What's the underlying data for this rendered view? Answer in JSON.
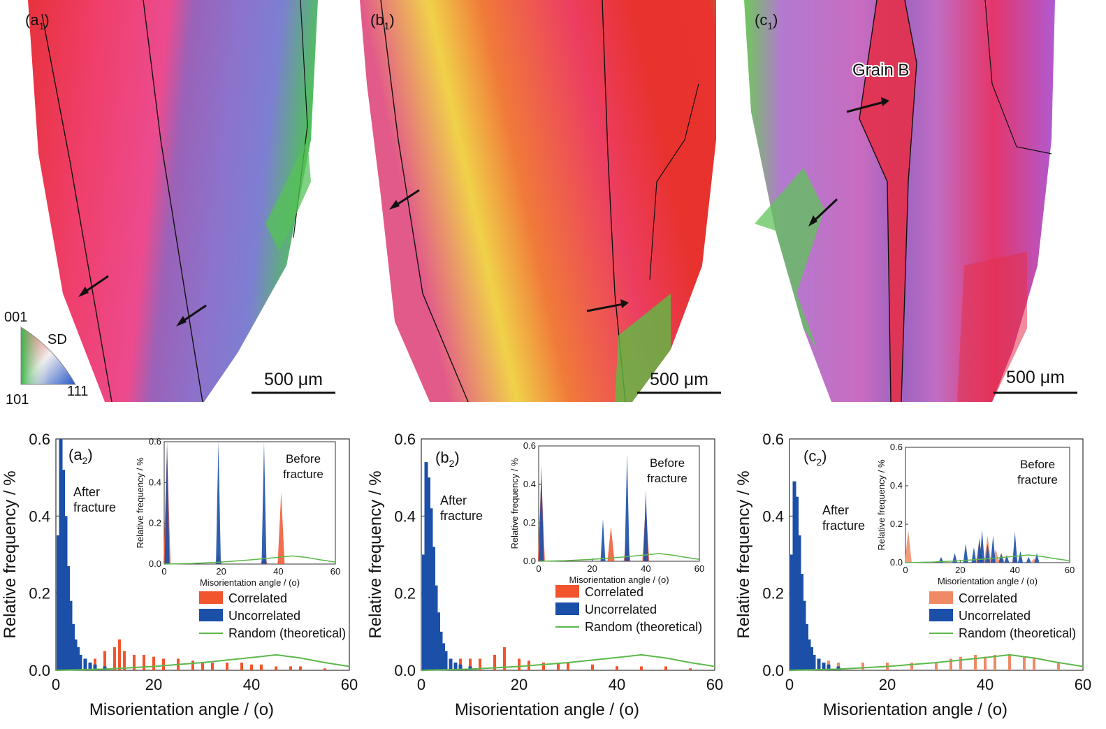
{
  "maps": [
    {
      "label_main": "(a",
      "label_sub": "1",
      "label_end": ")",
      "scale_text": "500 μm",
      "arrows": 2
    },
    {
      "label_main": "(b",
      "label_sub": "1",
      "label_end": ")",
      "scale_text": "500 μm",
      "arrows": 2
    },
    {
      "label_main": "(c",
      "label_sub": "1",
      "label_end": ")",
      "scale_text": "500 μm",
      "grain_label": "Grain  B",
      "arrows": 2
    }
  ],
  "ipf_key": {
    "top": "001",
    "left": "101",
    "right": "111",
    "side": "SD",
    "colors": {
      "001": "#e8282e",
      "101": "#39b54a",
      "111": "#2458c8"
    }
  },
  "colors": {
    "correlated": "#f2542d",
    "correlated_light": "#f08a66",
    "uncorrelated": "#1b4fa8",
    "random": "#5cb84a"
  },
  "chart_data": [
    {
      "type": "bar",
      "panel_main": "(a",
      "panel_sub": "2",
      "panel_end": ")",
      "xlabel": "Misorientation angle / (o)",
      "ylabel": "Relative frequency / %",
      "xlim": [
        0,
        60
      ],
      "ylim": [
        0,
        0.6
      ],
      "xticks": [
        0,
        20,
        40,
        60
      ],
      "yticks": [
        0.0,
        0.2,
        0.4,
        0.6
      ],
      "tick_labels_x": [
        "0",
        "20",
        "40",
        "60"
      ],
      "tick_labels_y": [
        "0.0",
        "0.2",
        "0.4",
        "0.6"
      ],
      "annotation": [
        "After",
        "fracture"
      ],
      "legend": [
        "Correlated",
        "Uncorrelated",
        "Random (theoretical)"
      ],
      "series": [
        {
          "name": "Uncorrelated",
          "x": [
            0.5,
            1.0,
            1.5,
            2.0,
            2.5,
            3.0,
            3.5,
            4.0,
            4.5,
            5.0,
            6.0,
            7.0,
            8.0,
            10.0
          ],
          "values": [
            0.35,
            0.6,
            0.52,
            0.4,
            0.27,
            0.18,
            0.12,
            0.08,
            0.06,
            0.04,
            0.03,
            0.02,
            0.015,
            0.01
          ]
        },
        {
          "name": "Correlated",
          "x": [
            5,
            8,
            10,
            12,
            13,
            14,
            16,
            18,
            20,
            22,
            25,
            28,
            30,
            32,
            35,
            38,
            40,
            42,
            45,
            48,
            50,
            55
          ],
          "values": [
            0.02,
            0.03,
            0.05,
            0.06,
            0.08,
            0.05,
            0.04,
            0.04,
            0.035,
            0.03,
            0.03,
            0.025,
            0.02,
            0.02,
            0.02,
            0.02,
            0.015,
            0.015,
            0.01,
            0.01,
            0.01,
            0.005
          ]
        },
        {
          "name": "Random (theoretical)",
          "x": [
            0,
            10,
            20,
            30,
            40,
            45,
            50,
            55,
            60
          ],
          "values": [
            0.0,
            0.003,
            0.01,
            0.02,
            0.033,
            0.04,
            0.032,
            0.02,
            0.01
          ]
        }
      ],
      "inset": {
        "ylabel": "Relative frequency / %",
        "xlabel": "Misorientation angle / (o)",
        "xlim": [
          0,
          60
        ],
        "ylim": [
          0,
          0.6
        ],
        "tick_labels_x": [
          "0",
          "20",
          "40",
          "60"
        ],
        "tick_labels_y": [
          "0.0",
          "0.2",
          "0.4",
          "0.6"
        ],
        "annotation": [
          "Before",
          "fracture"
        ],
        "uncorrelated": {
          "x": [
            1,
            19,
            35
          ],
          "values": [
            0.6,
            0.6,
            0.6
          ]
        },
        "correlated": {
          "x": [
            1,
            19,
            35,
            41
          ],
          "values": [
            0.58,
            0.05,
            0.05,
            0.35
          ]
        }
      }
    },
    {
      "type": "bar",
      "panel_main": "(b",
      "panel_sub": "2",
      "panel_end": ")",
      "xlabel": "Misorientation angle / (o)",
      "ylabel": "Relative frequency / %",
      "xlim": [
        0,
        60
      ],
      "ylim": [
        0,
        0.6
      ],
      "xticks": [
        0,
        20,
        40,
        60
      ],
      "yticks": [
        0.0,
        0.2,
        0.4,
        0.6
      ],
      "tick_labels_x": [
        "0",
        "20",
        "40",
        "60"
      ],
      "tick_labels_y": [
        "0.0",
        "0.2",
        "0.4",
        "0.6"
      ],
      "annotation": [
        "After",
        "fracture"
      ],
      "legend": [
        "Correlated",
        "Uncorrelated",
        "Random (theoretical)"
      ],
      "series": [
        {
          "name": "Uncorrelated",
          "x": [
            0.5,
            1.0,
            1.5,
            2.0,
            2.5,
            3.0,
            3.5,
            4.0,
            4.5,
            5.0,
            6.0,
            7.0,
            8.0,
            10.0
          ],
          "values": [
            0.3,
            0.54,
            0.5,
            0.42,
            0.32,
            0.22,
            0.15,
            0.1,
            0.07,
            0.05,
            0.03,
            0.02,
            0.015,
            0.01
          ]
        },
        {
          "name": "Correlated",
          "x": [
            1,
            2,
            3,
            5,
            8,
            10,
            12,
            15,
            17,
            20,
            22,
            25,
            28,
            30,
            35,
            40,
            45,
            50,
            55
          ],
          "values": [
            0.05,
            0.07,
            0.05,
            0.04,
            0.03,
            0.03,
            0.03,
            0.04,
            0.06,
            0.03,
            0.025,
            0.02,
            0.02,
            0.02,
            0.015,
            0.01,
            0.01,
            0.01,
            0.005
          ]
        },
        {
          "name": "Random (theoretical)",
          "x": [
            0,
            10,
            20,
            30,
            40,
            45,
            50,
            55,
            60
          ],
          "values": [
            0.0,
            0.003,
            0.01,
            0.02,
            0.033,
            0.04,
            0.032,
            0.02,
            0.01
          ]
        }
      ],
      "inset": {
        "ylabel": "Relative frequency / %",
        "xlabel": "Misorientation angle / (o)",
        "xlim": [
          0,
          60
        ],
        "ylim": [
          0,
          0.6
        ],
        "tick_labels_x": [
          "0",
          "20",
          "40",
          "60"
        ],
        "tick_labels_y": [
          "0.0",
          "0.2",
          "0.4",
          "0.6"
        ],
        "annotation": [
          "Before",
          "fracture"
        ],
        "uncorrelated": {
          "x": [
            1,
            24,
            33,
            40
          ],
          "values": [
            0.5,
            0.22,
            0.56,
            0.37
          ]
        },
        "correlated": {
          "x": [
            1,
            27,
            33,
            40
          ],
          "values": [
            0.45,
            0.18,
            0.12,
            0.3
          ]
        }
      }
    },
    {
      "type": "bar",
      "panel_main": "(c",
      "panel_sub": "2",
      "panel_end": ")",
      "xlabel": "Misorientation angle / (o)",
      "ylabel": "Relative frequency / %",
      "xlim": [
        0,
        60
      ],
      "ylim": [
        0,
        0.6
      ],
      "xticks": [
        0,
        20,
        40,
        60
      ],
      "yticks": [
        0.0,
        0.2,
        0.4,
        0.6
      ],
      "tick_labels_x": [
        "0",
        "20",
        "40",
        "60"
      ],
      "tick_labels_y": [
        "0.0",
        "0.2",
        "0.4",
        "0.6"
      ],
      "annotation": [
        "After",
        "fracture"
      ],
      "legend": [
        "Correlated",
        "Uncorrelated",
        "Random (theoretical)"
      ],
      "series": [
        {
          "name": "Uncorrelated",
          "x": [
            0.5,
            1.0,
            1.5,
            2.0,
            2.5,
            3.0,
            3.5,
            4.0,
            4.5,
            5.0,
            6.0,
            7.0,
            8.0,
            10.0
          ],
          "values": [
            0.3,
            0.49,
            0.45,
            0.35,
            0.25,
            0.18,
            0.12,
            0.08,
            0.06,
            0.04,
            0.03,
            0.02,
            0.015,
            0.01
          ]
        },
        {
          "name": "Correlated",
          "x": [
            2,
            4,
            6,
            8,
            10,
            15,
            20,
            25,
            30,
            33,
            35,
            38,
            40,
            42,
            45,
            48,
            50,
            55
          ],
          "values": [
            0.04,
            0.04,
            0.03,
            0.025,
            0.02,
            0.02,
            0.02,
            0.02,
            0.02,
            0.03,
            0.035,
            0.04,
            0.035,
            0.04,
            0.04,
            0.035,
            0.03,
            0.02
          ]
        },
        {
          "name": "Random (theoretical)",
          "x": [
            0,
            10,
            20,
            30,
            40,
            45,
            50,
            55,
            60
          ],
          "values": [
            0.0,
            0.003,
            0.01,
            0.02,
            0.033,
            0.04,
            0.032,
            0.02,
            0.01
          ]
        }
      ],
      "inset": {
        "ylabel": "Relative frequency / %",
        "xlabel": "Misorientation angle / (o)",
        "xlim": [
          0,
          60
        ],
        "ylim": [
          0,
          0.6
        ],
        "tick_labels_x": [
          "0",
          "20",
          "40",
          "60"
        ],
        "tick_labels_y": [
          "0.0",
          "0.2",
          "0.4",
          "0.6"
        ],
        "annotation": [
          "Before",
          "fracture"
        ],
        "uncorrelated": {
          "x": [
            13,
            18,
            22,
            25,
            27,
            28,
            30,
            32,
            35,
            37,
            40,
            42,
            45,
            48
          ],
          "values": [
            0.03,
            0.05,
            0.1,
            0.08,
            0.13,
            0.17,
            0.1,
            0.14,
            0.05,
            0.04,
            0.16,
            0.06,
            0.03,
            0.05
          ]
        },
        "correlated": {
          "x": [
            1,
            27,
            30,
            33,
            35,
            40,
            47
          ],
          "values": [
            0.17,
            0.12,
            0.14,
            0.07,
            0.05,
            0.03,
            0.02
          ]
        }
      }
    }
  ]
}
